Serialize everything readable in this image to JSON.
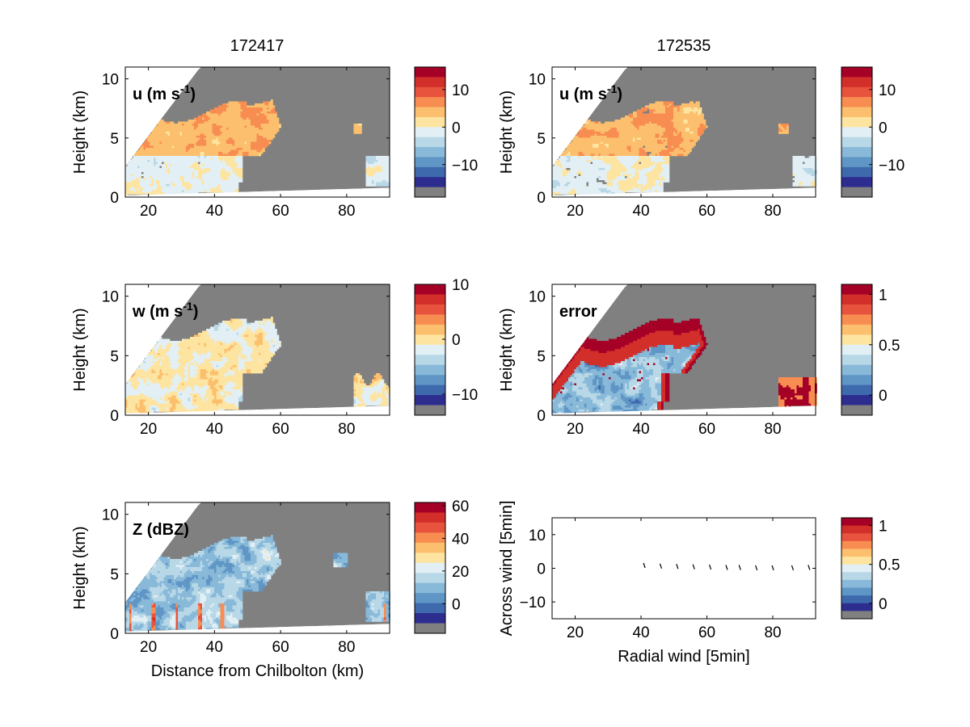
{
  "column_titles": [
    "172417",
    "172535"
  ],
  "colors": {
    "scale": [
      "#2c2d8f",
      "#3f69ad",
      "#5f96c6",
      "#89b9d8",
      "#b8d8e8",
      "#e2eff5",
      "#fde4a0",
      "#fcbf6d",
      "#f88d52",
      "#e8533d",
      "#d22e2a",
      "#a50026"
    ],
    "masked": "#808080",
    "background": "#ffffff"
  },
  "chart_data": [
    {
      "id": "u-172417",
      "type": "heatmap",
      "panel_label": "u (m s-1)",
      "xlabel": "",
      "ylabel": "Height (km)",
      "xlim": [
        13,
        93
      ],
      "ylim": [
        0,
        11
      ],
      "xticks": [
        20,
        40,
        60,
        80
      ],
      "yticks": [
        0,
        5,
        10
      ],
      "colorbar": {
        "ticks": [
          10,
          0,
          -10
        ],
        "range": [
          -16,
          16
        ],
        "levels": 12,
        "extra_bottom": "masked"
      }
    },
    {
      "id": "u-172535",
      "type": "heatmap",
      "panel_label": "u (m s-1)",
      "xlabel": "",
      "ylabel": "Height (km)",
      "xlim": [
        13,
        93
      ],
      "ylim": [
        0,
        11
      ],
      "xticks": [
        20,
        40,
        60,
        80
      ],
      "yticks": [
        0,
        5,
        10
      ],
      "colorbar": {
        "ticks": [
          10,
          0,
          -10
        ],
        "range": [
          -16,
          16
        ],
        "levels": 12,
        "extra_bottom": "masked"
      }
    },
    {
      "id": "w-172417",
      "type": "heatmap",
      "panel_label": "w (m s-1)",
      "xlabel": "",
      "ylabel": "Height (km)",
      "xlim": [
        13,
        93
      ],
      "ylim": [
        0,
        11
      ],
      "xticks": [
        20,
        40,
        60,
        80
      ],
      "yticks": [
        0,
        5,
        10
      ],
      "colorbar": {
        "ticks": [
          10,
          0,
          -10
        ],
        "range": [
          -12,
          10
        ],
        "levels": 12,
        "extra_bottom": "masked"
      }
    },
    {
      "id": "error-172535",
      "type": "heatmap",
      "panel_label": "error",
      "xlabel": "",
      "ylabel": "Height (km)",
      "xlim": [
        13,
        93
      ],
      "ylim": [
        0,
        11
      ],
      "xticks": [
        20,
        40,
        60,
        80
      ],
      "yticks": [
        0,
        5,
        10
      ],
      "colorbar": {
        "ticks": [
          1,
          0.5,
          0
        ],
        "range": [
          -0.1,
          1.1
        ],
        "levels": 12,
        "extra_bottom": "masked"
      }
    },
    {
      "id": "z-172417",
      "type": "heatmap",
      "panel_label": "Z (dBZ)",
      "xlabel": "Distance from Chilbolton (km)",
      "ylabel": "Height (km)",
      "xlim": [
        13,
        93
      ],
      "ylim": [
        0,
        11
      ],
      "xticks": [
        20,
        40,
        60,
        80
      ],
      "yticks": [
        0,
        5,
        10
      ],
      "colorbar": {
        "ticks": [
          60,
          40,
          20,
          0
        ],
        "range": [
          -12,
          62
        ],
        "levels": 12,
        "extra_bottom": "masked"
      }
    },
    {
      "id": "wind-vectors",
      "type": "scatter",
      "panel_label": "",
      "xlabel": "Radial wind [5min]",
      "ylabel": "Across wind [5min]",
      "xlim": [
        13,
        93
      ],
      "ylim": [
        -15,
        15
      ],
      "xticks": [
        20,
        40,
        60,
        80
      ],
      "yticks": [
        -10,
        0,
        10
      ],
      "x": [
        41,
        46,
        51,
        56,
        61,
        66,
        70,
        75,
        80,
        86,
        91
      ],
      "y": [
        0.6,
        0.4,
        0.3,
        0.2,
        0.1,
        0,
        0,
        -0.1,
        -0.1,
        -0.1,
        0
      ],
      "colorbar": {
        "ticks": [
          1,
          0.5,
          0
        ],
        "range": [
          -0.1,
          1.1
        ],
        "levels": 12,
        "extra_bottom": "masked"
      }
    }
  ]
}
